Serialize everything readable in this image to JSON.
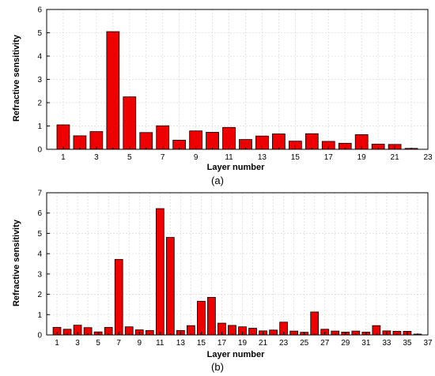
{
  "chart_data": [
    {
      "type": "bar",
      "caption": "(a)",
      "xlabel": "Layer number",
      "ylabel": "Refractive sensitivity",
      "categories": [
        1,
        2,
        3,
        4,
        5,
        6,
        7,
        8,
        9,
        10,
        11,
        12,
        13,
        14,
        15,
        16,
        17,
        18,
        19,
        20,
        21,
        22
      ],
      "x_ticks": [
        1,
        3,
        5,
        7,
        9,
        11,
        13,
        15,
        17,
        19,
        21,
        23
      ],
      "xlim": [
        0,
        23
      ],
      "ylim": [
        0,
        6
      ],
      "y_ticks": [
        0,
        1,
        2,
        3,
        4,
        5,
        6
      ],
      "values": [
        1.05,
        0.58,
        0.76,
        5.05,
        2.25,
        0.72,
        1.01,
        0.39,
        0.79,
        0.73,
        0.94,
        0.42,
        0.57,
        0.66,
        0.35,
        0.67,
        0.34,
        0.26,
        0.63,
        0.22,
        0.21,
        0.04
      ],
      "grid": true,
      "bar_color": "#ee0000"
    },
    {
      "type": "bar",
      "caption": "(b)",
      "xlabel": "Layer number",
      "ylabel": "Refractive sensitivity",
      "categories": [
        1,
        2,
        3,
        4,
        5,
        6,
        7,
        8,
        9,
        10,
        11,
        12,
        13,
        14,
        15,
        16,
        17,
        18,
        19,
        20,
        21,
        22,
        23,
        24,
        25,
        26,
        27,
        28,
        29,
        30,
        31,
        32,
        33,
        34,
        35,
        36
      ],
      "x_ticks": [
        1,
        3,
        5,
        7,
        9,
        11,
        13,
        15,
        17,
        19,
        21,
        23,
        25,
        27,
        29,
        31,
        33,
        35,
        37
      ],
      "xlim": [
        0,
        37
      ],
      "ylim": [
        0,
        7
      ],
      "y_ticks": [
        0,
        1,
        2,
        3,
        4,
        5,
        6,
        7
      ],
      "values": [
        0.37,
        0.28,
        0.48,
        0.36,
        0.15,
        0.37,
        3.72,
        0.4,
        0.25,
        0.22,
        6.22,
        4.8,
        0.22,
        0.46,
        1.66,
        1.85,
        0.58,
        0.47,
        0.4,
        0.33,
        0.2,
        0.24,
        0.63,
        0.19,
        0.13,
        1.13,
        0.28,
        0.19,
        0.14,
        0.19,
        0.14,
        0.46,
        0.2,
        0.18,
        0.18,
        0.04
      ],
      "grid": true,
      "bar_color": "#ee0000"
    }
  ]
}
